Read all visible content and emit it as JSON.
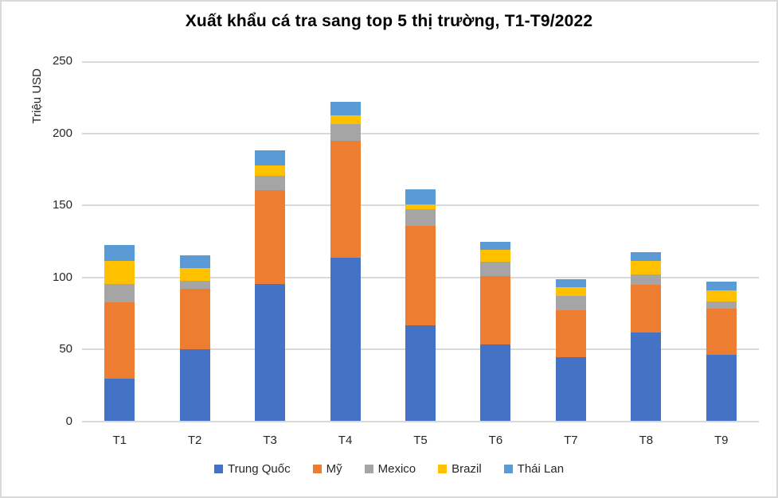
{
  "chart_data": {
    "type": "bar",
    "stacked": true,
    "title": "Xuất khẩu cá tra sang top 5 thị trường, T1-T9/2022",
    "ylabel": "Triệu USD",
    "xlabel": "",
    "categories": [
      "T1",
      "T2",
      "T3",
      "T4",
      "T5",
      "T6",
      "T7",
      "T8",
      "T9"
    ],
    "series": [
      {
        "name": "Trung Quốc",
        "color": "#4472C4",
        "values": [
          29,
          49.5,
          95,
          113,
          66.5,
          53,
          44,
          61,
          46
        ]
      },
      {
        "name": "Mỹ",
        "color": "#ED7D31",
        "values": [
          53,
          42,
          65,
          81,
          69,
          47.5,
          33,
          33.5,
          32
        ]
      },
      {
        "name": "Mexico",
        "color": "#A5A5A5",
        "values": [
          13,
          5.5,
          10,
          12,
          11.5,
          10,
          9.5,
          7,
          5
        ]
      },
      {
        "name": "Brazil",
        "color": "#FFC000",
        "values": [
          16,
          9,
          7,
          6,
          3,
          8,
          6.5,
          9.5,
          7.5
        ]
      },
      {
        "name": "Thái Lan",
        "color": "#5B9BD5",
        "values": [
          11,
          9,
          10.5,
          9.5,
          10.5,
          5.5,
          5.5,
          6,
          6
        ]
      }
    ],
    "y_ticks": [
      0,
      50,
      100,
      150,
      200,
      250
    ],
    "ylim": [
      0,
      250
    ],
    "grid": true,
    "legend_position": "bottom",
    "gridline_color": "#D9D9D9",
    "text_color": "#262626"
  }
}
